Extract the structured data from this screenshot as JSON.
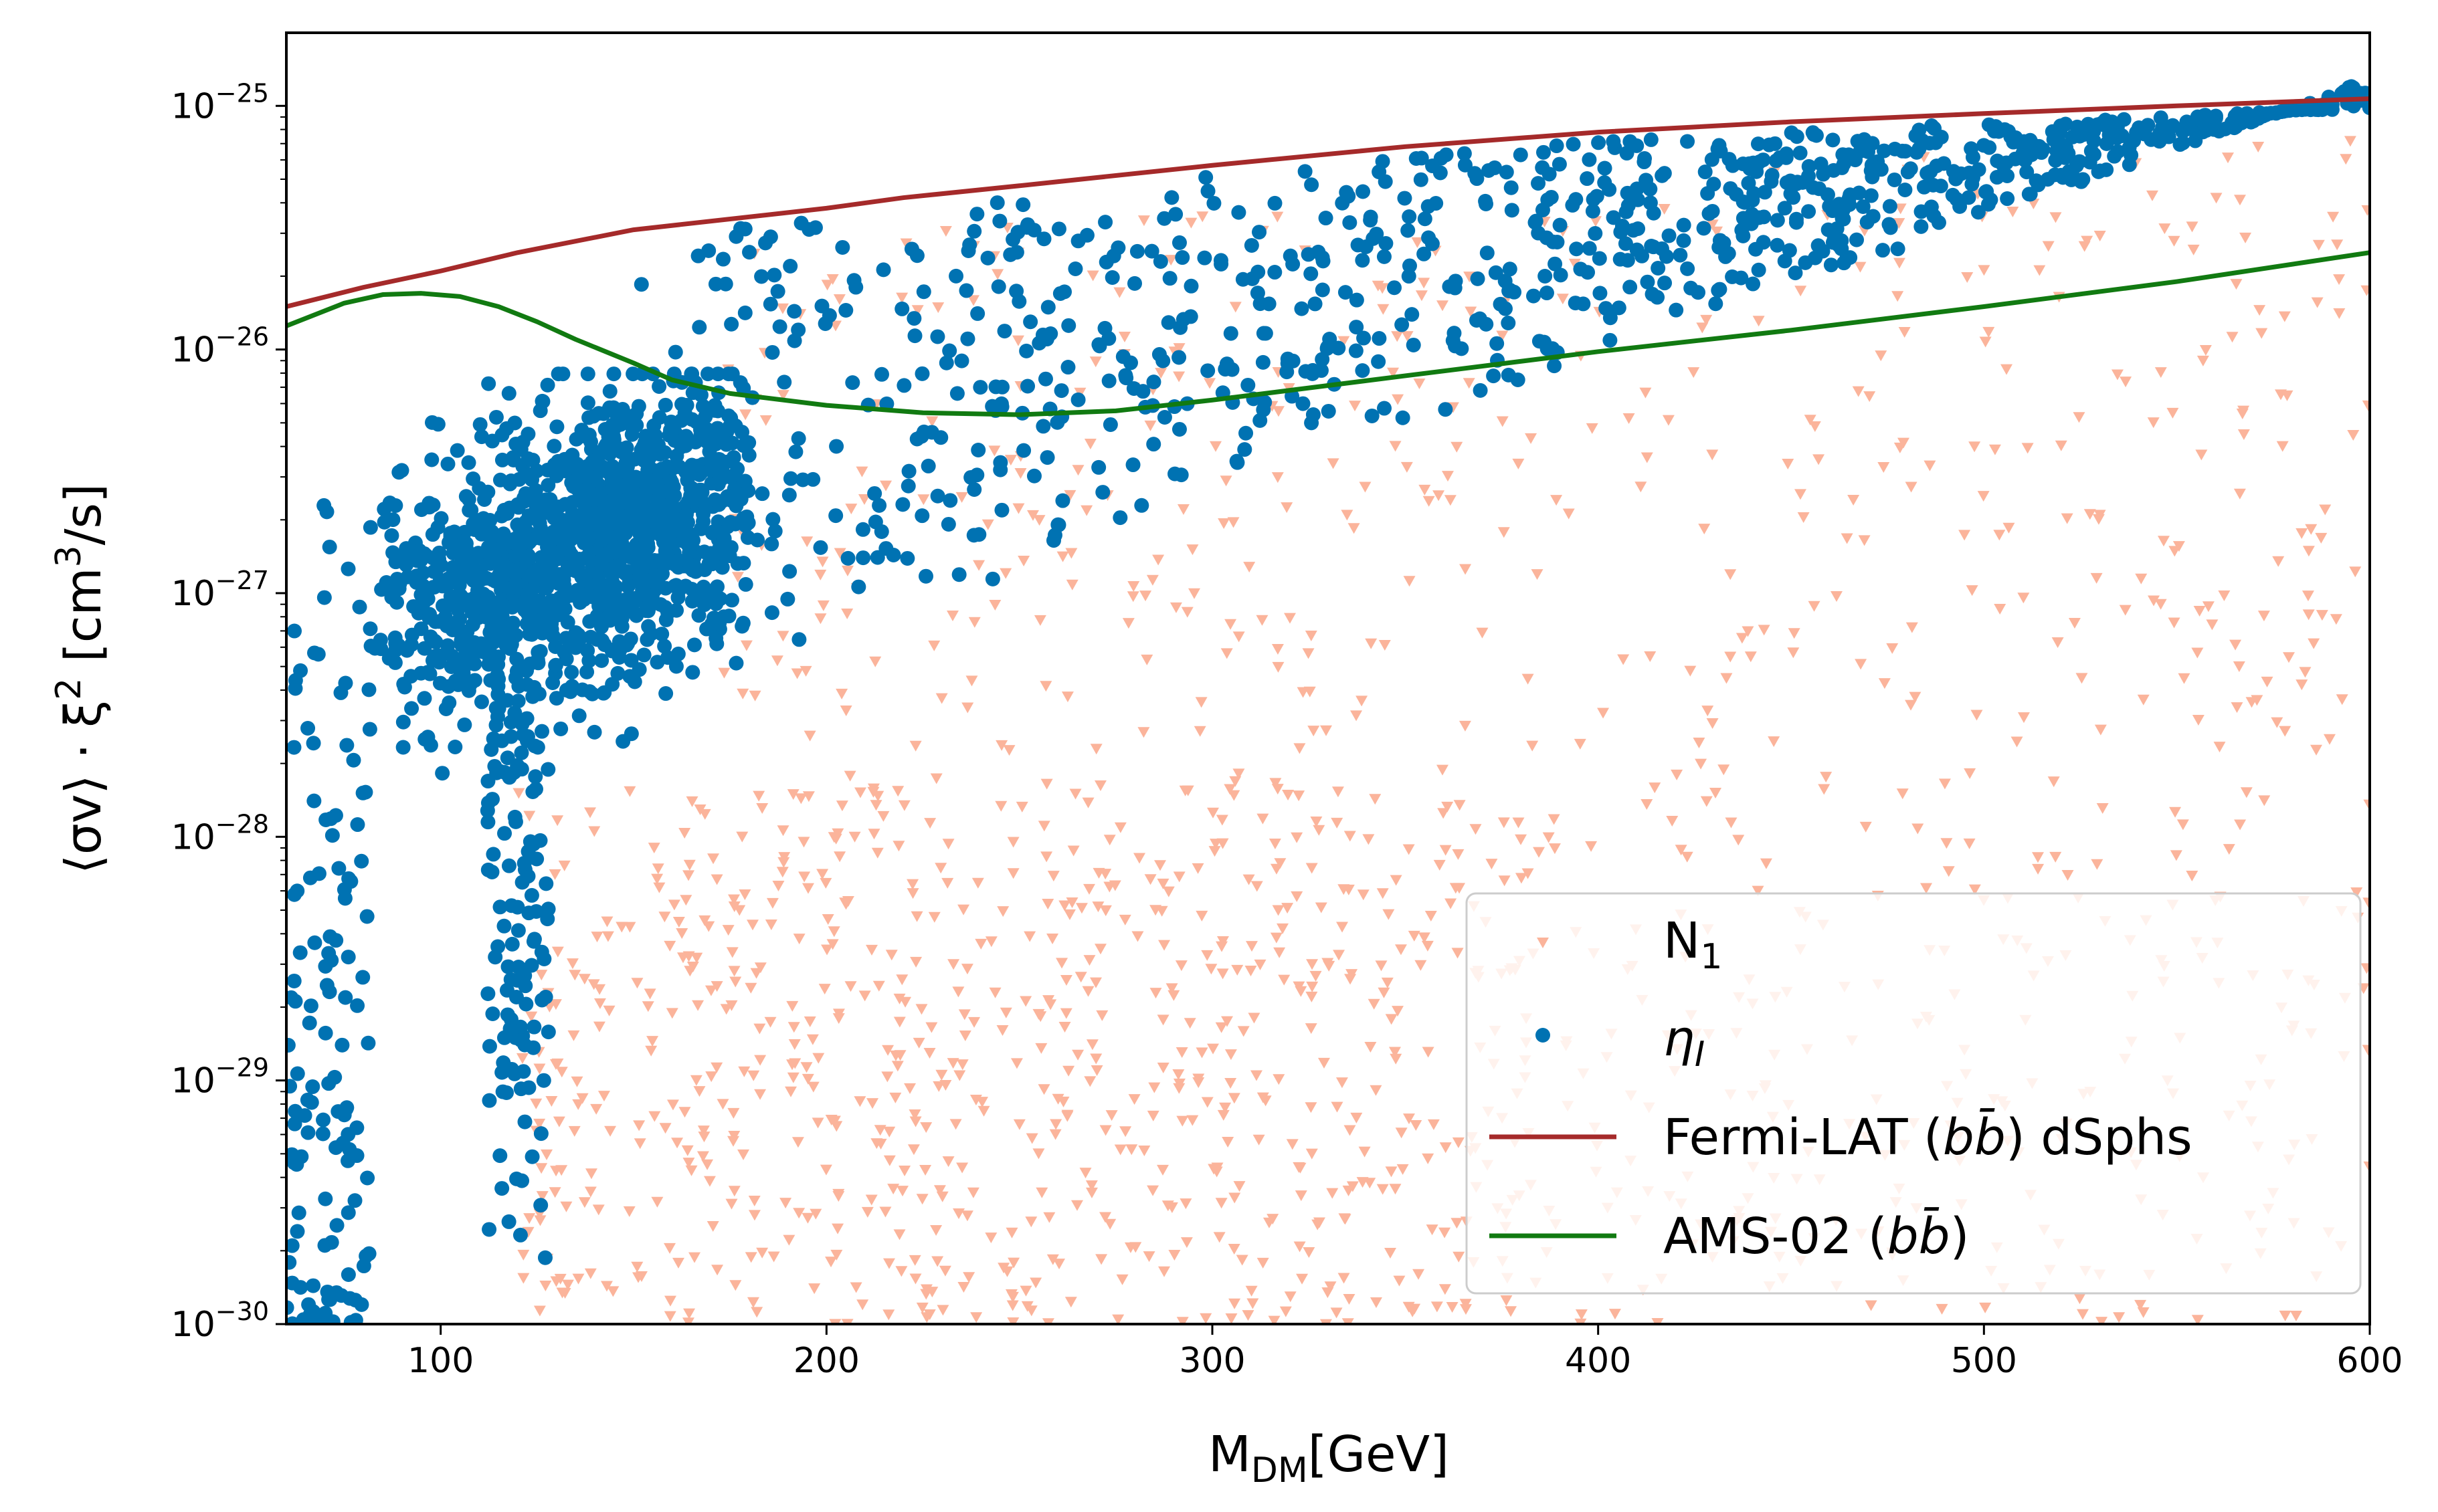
{
  "chart_data": {
    "type": "scatter",
    "xlabel": "M_DM[GeV]",
    "xlabel_main": "M",
    "xlabel_sub": "DM",
    "xlabel_rest": "[GeV]",
    "ylabel": "⟨σv⟩ · ξ² [cm³/s]",
    "ylabel_pre": "⟨σv⟩ · ξ",
    "ylabel_sup1": "2",
    "ylabel_mid": " [cm",
    "ylabel_sup2": "3",
    "ylabel_post": "/s]",
    "xlim": [
      60,
      600
    ],
    "ylim_log10": [
      -30,
      -24.7
    ],
    "yscale": "log",
    "x_ticks": [
      100,
      200,
      300,
      400,
      500,
      600
    ],
    "y_ticks": [
      {
        "exp": -30,
        "base": "10",
        "sup": "−30"
      },
      {
        "exp": -29,
        "base": "10",
        "sup": "−29"
      },
      {
        "exp": -28,
        "base": "10",
        "sup": "−28"
      },
      {
        "exp": -27,
        "base": "10",
        "sup": "−27"
      },
      {
        "exp": -26,
        "base": "10",
        "sup": "−26"
      },
      {
        "exp": -25,
        "base": "10",
        "sup": "−25"
      }
    ],
    "legend_position": "bottom-right",
    "series": [
      {
        "name": "N1",
        "label_main": "N",
        "label_sub": "1",
        "kind": "scatter",
        "marker": "triangle-down",
        "color": "#fbb49b",
        "count": 1800,
        "regions": [
          {
            "x": [
              120,
              600
            ],
            "log10_y": [
              -30,
              -27.8
            ],
            "weight": 0.75
          },
          {
            "x": [
              170,
              600
            ],
            "log10_y": [
              -27.8,
              -25.6
            ],
            "weight": 0.25
          }
        ]
      },
      {
        "name": "eta_I",
        "label_main": "η",
        "label_sub": "I",
        "kind": "scatter",
        "marker": "circle",
        "color": "#0072b2",
        "count": 2600,
        "regions": [
          {
            "x": [
              80,
              180
            ],
            "log10_y": [
              -27.6,
              -26.3
            ],
            "weight": 0.55
          },
          {
            "x": [
              150,
              600
            ],
            "log10_y": "band between -27.4+0.006*(x-150) and Fermi-LAT limit",
            "weight": 0.35
          },
          {
            "x": [
              60,
              82
            ],
            "log10_y": [
              -30,
              -26.6
            ],
            "weight": 0.05
          },
          {
            "x": [
              112,
              128
            ],
            "log10_y": [
              -29.8,
              -27.3
            ],
            "weight": 0.05
          }
        ]
      },
      {
        "name": "Fermi-LAT (bb̄) dSphs",
        "label": "Fermi-LAT (bb̄) dSphs",
        "label_pre": "Fermi-LAT (",
        "label_italic": "bb̄",
        "label_post": ") dSphs",
        "kind": "line",
        "color": "#a52a2a",
        "x": [
          60,
          80,
          100,
          120,
          150,
          200,
          220,
          250,
          300,
          350,
          400,
          450,
          500,
          550,
          600
        ],
        "y": [
          1.5e-26,
          1.8e-26,
          2.1e-26,
          2.5e-26,
          3.1e-26,
          3.8e-26,
          4.2e-26,
          4.7e-26,
          5.7e-26,
          6.8e-26,
          7.8e-26,
          8.6e-26,
          9.3e-26,
          1e-25,
          1.07e-25
        ]
      },
      {
        "name": "AMS-02 (bb̄)",
        "label": "AMS-02 (bb̄)",
        "label_pre": "AMS-02 (",
        "label_italic": "bb̄",
        "label_post": ")",
        "kind": "line",
        "color": "#117a11",
        "x": [
          60,
          75,
          85,
          95,
          105,
          115,
          125,
          135,
          150,
          160,
          175,
          200,
          225,
          250,
          275,
          300,
          350,
          400,
          450,
          500,
          550,
          600
        ],
        "y": [
          1.25e-26,
          1.55e-26,
          1.68e-26,
          1.7e-26,
          1.65e-26,
          1.5e-26,
          1.3e-26,
          1.1e-26,
          8.8e-27,
          7.5e-27,
          6.6e-27,
          5.9e-27,
          5.5e-27,
          5.4e-27,
          5.6e-27,
          6.2e-27,
          7.8e-27,
          9.8e-27,
          1.2e-26,
          1.5e-26,
          1.9e-26,
          2.5e-26
        ]
      }
    ]
  }
}
